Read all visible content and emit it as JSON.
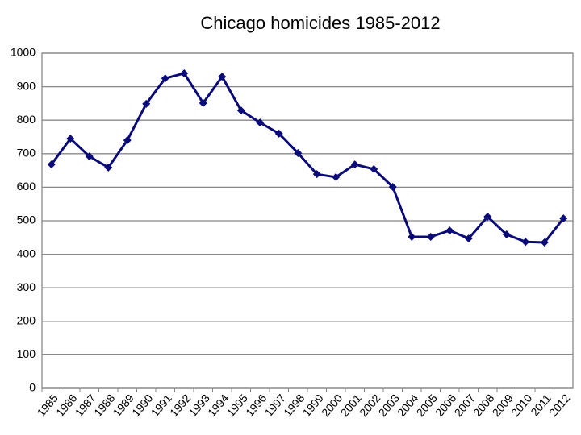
{
  "chart_data": {
    "type": "line",
    "title": "Chicago homicides 1985-2012",
    "categories": [
      "1985",
      "1986",
      "1987",
      "1988",
      "1989",
      "1990",
      "1991",
      "1992",
      "1993",
      "1994",
      "1995",
      "1996",
      "1997",
      "1998",
      "1999",
      "2000",
      "2001",
      "2002",
      "2003",
      "2004",
      "2005",
      "2006",
      "2007",
      "2008",
      "2009",
      "2010",
      "2011",
      "2012"
    ],
    "series": [
      {
        "name": "Homicides",
        "color": "#0a0a78",
        "values": [
          668,
          745,
          692,
          659,
          740,
          849,
          925,
          940,
          851,
          930,
          829,
          793,
          760,
          702,
          639,
          630,
          668,
          654,
          601,
          452,
          452,
          471,
          447,
          512,
          459,
          437,
          435,
          507
        ]
      }
    ],
    "ylim": [
      0,
      1000
    ],
    "yticks": [
      0,
      100,
      200,
      300,
      400,
      500,
      600,
      700,
      800,
      900,
      1000
    ],
    "grid": true
  }
}
